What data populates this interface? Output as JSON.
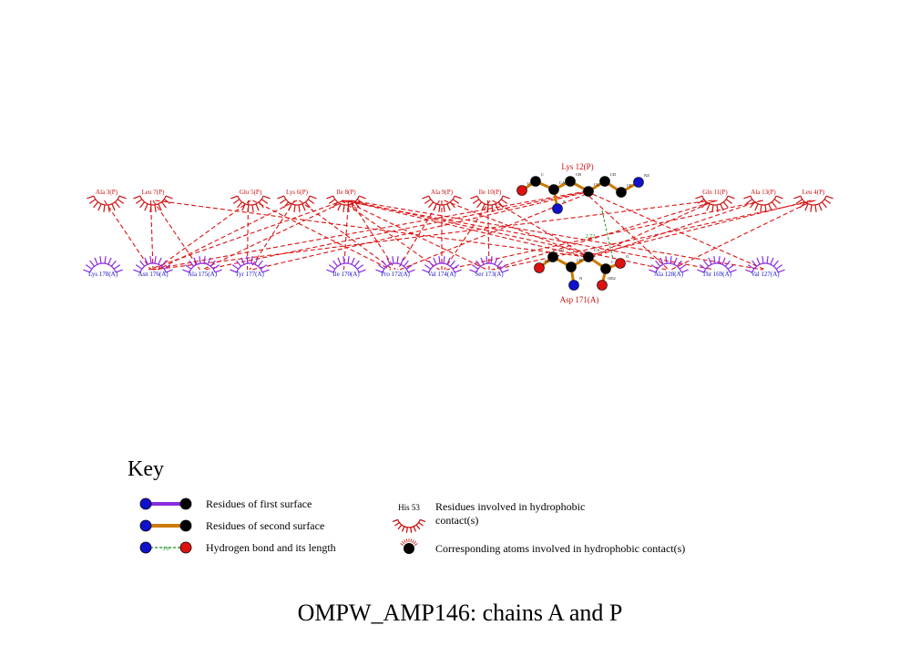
{
  "title": "OMPW_AMP146: chains A and P",
  "colors": {
    "chain_p": "#cc1111",
    "chain_a": "#1111cc",
    "arc_p": "#cc1111",
    "arc_a": "#8a2be2",
    "hydrophobic_line": "#dd1111",
    "hbond": "#228b22",
    "bond_second": "#cc7a00",
    "bond_first": "#8a2be2",
    "atom_c": "#000000",
    "atom_n": "#1111cc",
    "atom_o": "#dd1111"
  },
  "residues_p": [
    {
      "id": "ala3p",
      "label": "Ala 3(P)"
    },
    {
      "id": "leu7p",
      "label": "Leu 7(P)"
    },
    {
      "id": "glu5p",
      "label": "Glu 5(P)"
    },
    {
      "id": "lys6p",
      "label": "Lys 6(P)"
    },
    {
      "id": "ile8p",
      "label": "Ile 8(P)"
    },
    {
      "id": "ala9p",
      "label": "Ala 9(P)"
    },
    {
      "id": "ile10p",
      "label": "Ile 10(P)"
    },
    {
      "id": "gln11p",
      "label": "Gln 11(P)"
    },
    {
      "id": "ala13p",
      "label": "Ala 13(P)"
    },
    {
      "id": "leu4p",
      "label": "Leu 4(P)"
    }
  ],
  "residues_a": [
    {
      "id": "lys178a",
      "label": "Lys 178(A)"
    },
    {
      "id": "asn176a",
      "label": "Asn 176(A)"
    },
    {
      "id": "ala175a",
      "label": "Ala 175(A)"
    },
    {
      "id": "tyr177a",
      "label": "Tyr 177(A)"
    },
    {
      "id": "ile170a",
      "label": "Ile 170(A)"
    },
    {
      "id": "pro172a",
      "label": "Pro 172(A)"
    },
    {
      "id": "val174a",
      "label": "Val 174(A)"
    },
    {
      "id": "ser173a",
      "label": "Ser 173(A)"
    },
    {
      "id": "ala128a",
      "label": "Ala 128(A)"
    },
    {
      "id": "thr169a",
      "label": "Thr 169(A)"
    },
    {
      "id": "val127a",
      "label": "Val 127(A)"
    }
  ],
  "ligand_residues": {
    "lys12p": {
      "label": "Lys 12(P)",
      "atoms": [
        {
          "name": "O",
          "element": "O"
        },
        {
          "name": "C",
          "element": "C"
        },
        {
          "name": "CA",
          "element": "C"
        },
        {
          "name": "CB",
          "element": "C"
        },
        {
          "name": "CG",
          "element": "C"
        },
        {
          "name": "CD",
          "element": "C"
        },
        {
          "name": "CE",
          "element": "C"
        },
        {
          "name": "NZ",
          "element": "N"
        },
        {
          "name": "N",
          "element": "N"
        }
      ]
    },
    "asp171a": {
      "label": "Asp 171(A)",
      "atoms": [
        {
          "name": "OD1",
          "element": "O"
        },
        {
          "name": "CG",
          "element": "C"
        },
        {
          "name": "CB",
          "element": "C"
        },
        {
          "name": "CA",
          "element": "C"
        },
        {
          "name": "C",
          "element": "C"
        },
        {
          "name": "O",
          "element": "O"
        },
        {
          "name": "N",
          "element": "N"
        },
        {
          "name": "OD2",
          "element": "O"
        }
      ]
    }
  },
  "hbond_length": "2.72",
  "key": {
    "heading": "Key",
    "first_surface": "Residues of first surface",
    "second_surface": "Residues of second surface",
    "hbond": "Hydrogen bond and its length",
    "hbond_sample_length": "3.0",
    "hydrophobic_sample_residue": "His 53",
    "hydrophobic_line1": "Residues involved in hydrophobic",
    "hydrophobic_line2": "contact(s)",
    "hydrophobic_atoms": "Corresponding atoms involved in hydrophobic contact(s)"
  },
  "contacts": [
    [
      "ala3p",
      "asn176a"
    ],
    [
      "leu7p",
      "asn176a"
    ],
    [
      "leu7p",
      "ala175a"
    ],
    [
      "glu5p",
      "tyr177a"
    ],
    [
      "glu5p",
      "asn176a"
    ],
    [
      "lys6p",
      "tyr177a"
    ],
    [
      "lys6p",
      "asn176a"
    ],
    [
      "lys6p",
      "pro172a"
    ],
    [
      "ile8p",
      "asn176a"
    ],
    [
      "ile8p",
      "ala175a"
    ],
    [
      "ile8p",
      "ile170a"
    ],
    [
      "ile8p",
      "pro172a"
    ],
    [
      "ile8p",
      "val174a"
    ],
    [
      "ile8p",
      "ser173a"
    ],
    [
      "ile8p",
      "asp171a"
    ],
    [
      "ile8p",
      "ala128a"
    ],
    [
      "ile8p",
      "val127a"
    ],
    [
      "ile8p",
      "thr169a"
    ],
    [
      "ala9p",
      "pro172a"
    ],
    [
      "ala9p",
      "val174a"
    ],
    [
      "ala9p",
      "asp171a"
    ],
    [
      "ile10p",
      "ser173a"
    ],
    [
      "ile10p",
      "val174a"
    ],
    [
      "lys12p",
      "asn176a"
    ],
    [
      "lys12p",
      "ala175a"
    ],
    [
      "lys12p",
      "tyr177a"
    ],
    [
      "lys12p",
      "pro172a"
    ],
    [
      "lys12p",
      "ala128a"
    ],
    [
      "lys12p",
      "val127a"
    ],
    [
      "gln11p",
      "asn176a"
    ],
    [
      "gln11p",
      "asp171a"
    ],
    [
      "gln11p",
      "ser173a"
    ],
    [
      "ala13p",
      "asp171a"
    ],
    [
      "ala13p",
      "val174a"
    ],
    [
      "leu4p",
      "asp171a"
    ],
    [
      "leu4p",
      "ala128a"
    ],
    [
      "leu4p",
      "ser173a"
    ],
    [
      "glu5p",
      "pro172a"
    ],
    [
      "leu7p",
      "asp171a"
    ],
    [
      "ile10p",
      "asp171a"
    ]
  ]
}
